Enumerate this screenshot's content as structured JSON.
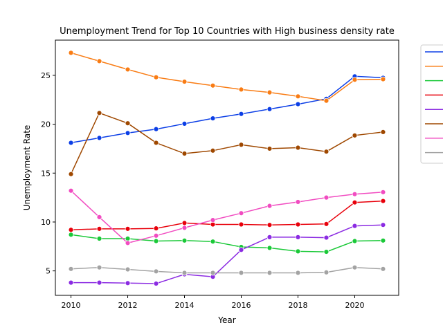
{
  "chart_data": {
    "type": "line",
    "title": "Unemployment Trend for Top 10 Countries with High business density rate",
    "xlabel": "Year",
    "ylabel": "Unemployment Rate",
    "xlim": [
      2009.45,
      2021.55
    ],
    "ylim": [
      2.5,
      28.6
    ],
    "xticks": [
      2010,
      2012,
      2014,
      2016,
      2018,
      2020
    ],
    "yticks": [
      5,
      10,
      15,
      20,
      25
    ],
    "grid": false,
    "legend": "right, partially clipped, labels not visible",
    "x": [
      2010,
      2011,
      2012,
      2013,
      2014,
      2015,
      2016,
      2017,
      2018,
      2019,
      2020,
      2021
    ],
    "series": [
      {
        "color": "#0b3ee6",
        "values": [
          18.1,
          18.6,
          19.1,
          19.5,
          20.05,
          20.6,
          21.05,
          21.55,
          22.05,
          22.6,
          24.9,
          24.75
        ]
      },
      {
        "color": "#f97c14",
        "values": [
          27.3,
          26.45,
          25.6,
          24.8,
          24.35,
          23.95,
          23.55,
          23.25,
          22.85,
          22.4,
          24.55,
          24.6
        ]
      },
      {
        "color": "#1ac938",
        "values": [
          8.7,
          8.3,
          8.3,
          8.05,
          8.1,
          8.0,
          7.45,
          7.35,
          7.0,
          6.95,
          8.05,
          8.1
        ]
      },
      {
        "color": "#e8000b",
        "values": [
          9.2,
          9.3,
          9.3,
          9.35,
          9.9,
          9.75,
          9.75,
          9.7,
          9.75,
          9.8,
          12.0,
          12.15
        ]
      },
      {
        "color": "#8b2be2",
        "values": [
          3.8,
          3.8,
          3.75,
          3.7,
          4.65,
          4.4,
          7.15,
          8.45,
          8.45,
          8.4,
          9.6,
          9.7
        ]
      },
      {
        "color": "#9f4800",
        "values": [
          14.9,
          21.15,
          20.1,
          18.1,
          17.0,
          17.3,
          17.9,
          17.5,
          17.6,
          17.2,
          18.85,
          19.2
        ]
      },
      {
        "color": "#f14cc1",
        "values": [
          13.2,
          10.5,
          7.85,
          8.6,
          9.4,
          10.2,
          10.9,
          11.65,
          12.05,
          12.5,
          12.85,
          13.05
        ]
      },
      {
        "color": "#a3a3a3",
        "values": [
          5.2,
          5.35,
          5.15,
          4.95,
          4.8,
          4.8,
          4.8,
          4.8,
          4.8,
          4.85,
          5.35,
          5.2
        ]
      }
    ]
  }
}
